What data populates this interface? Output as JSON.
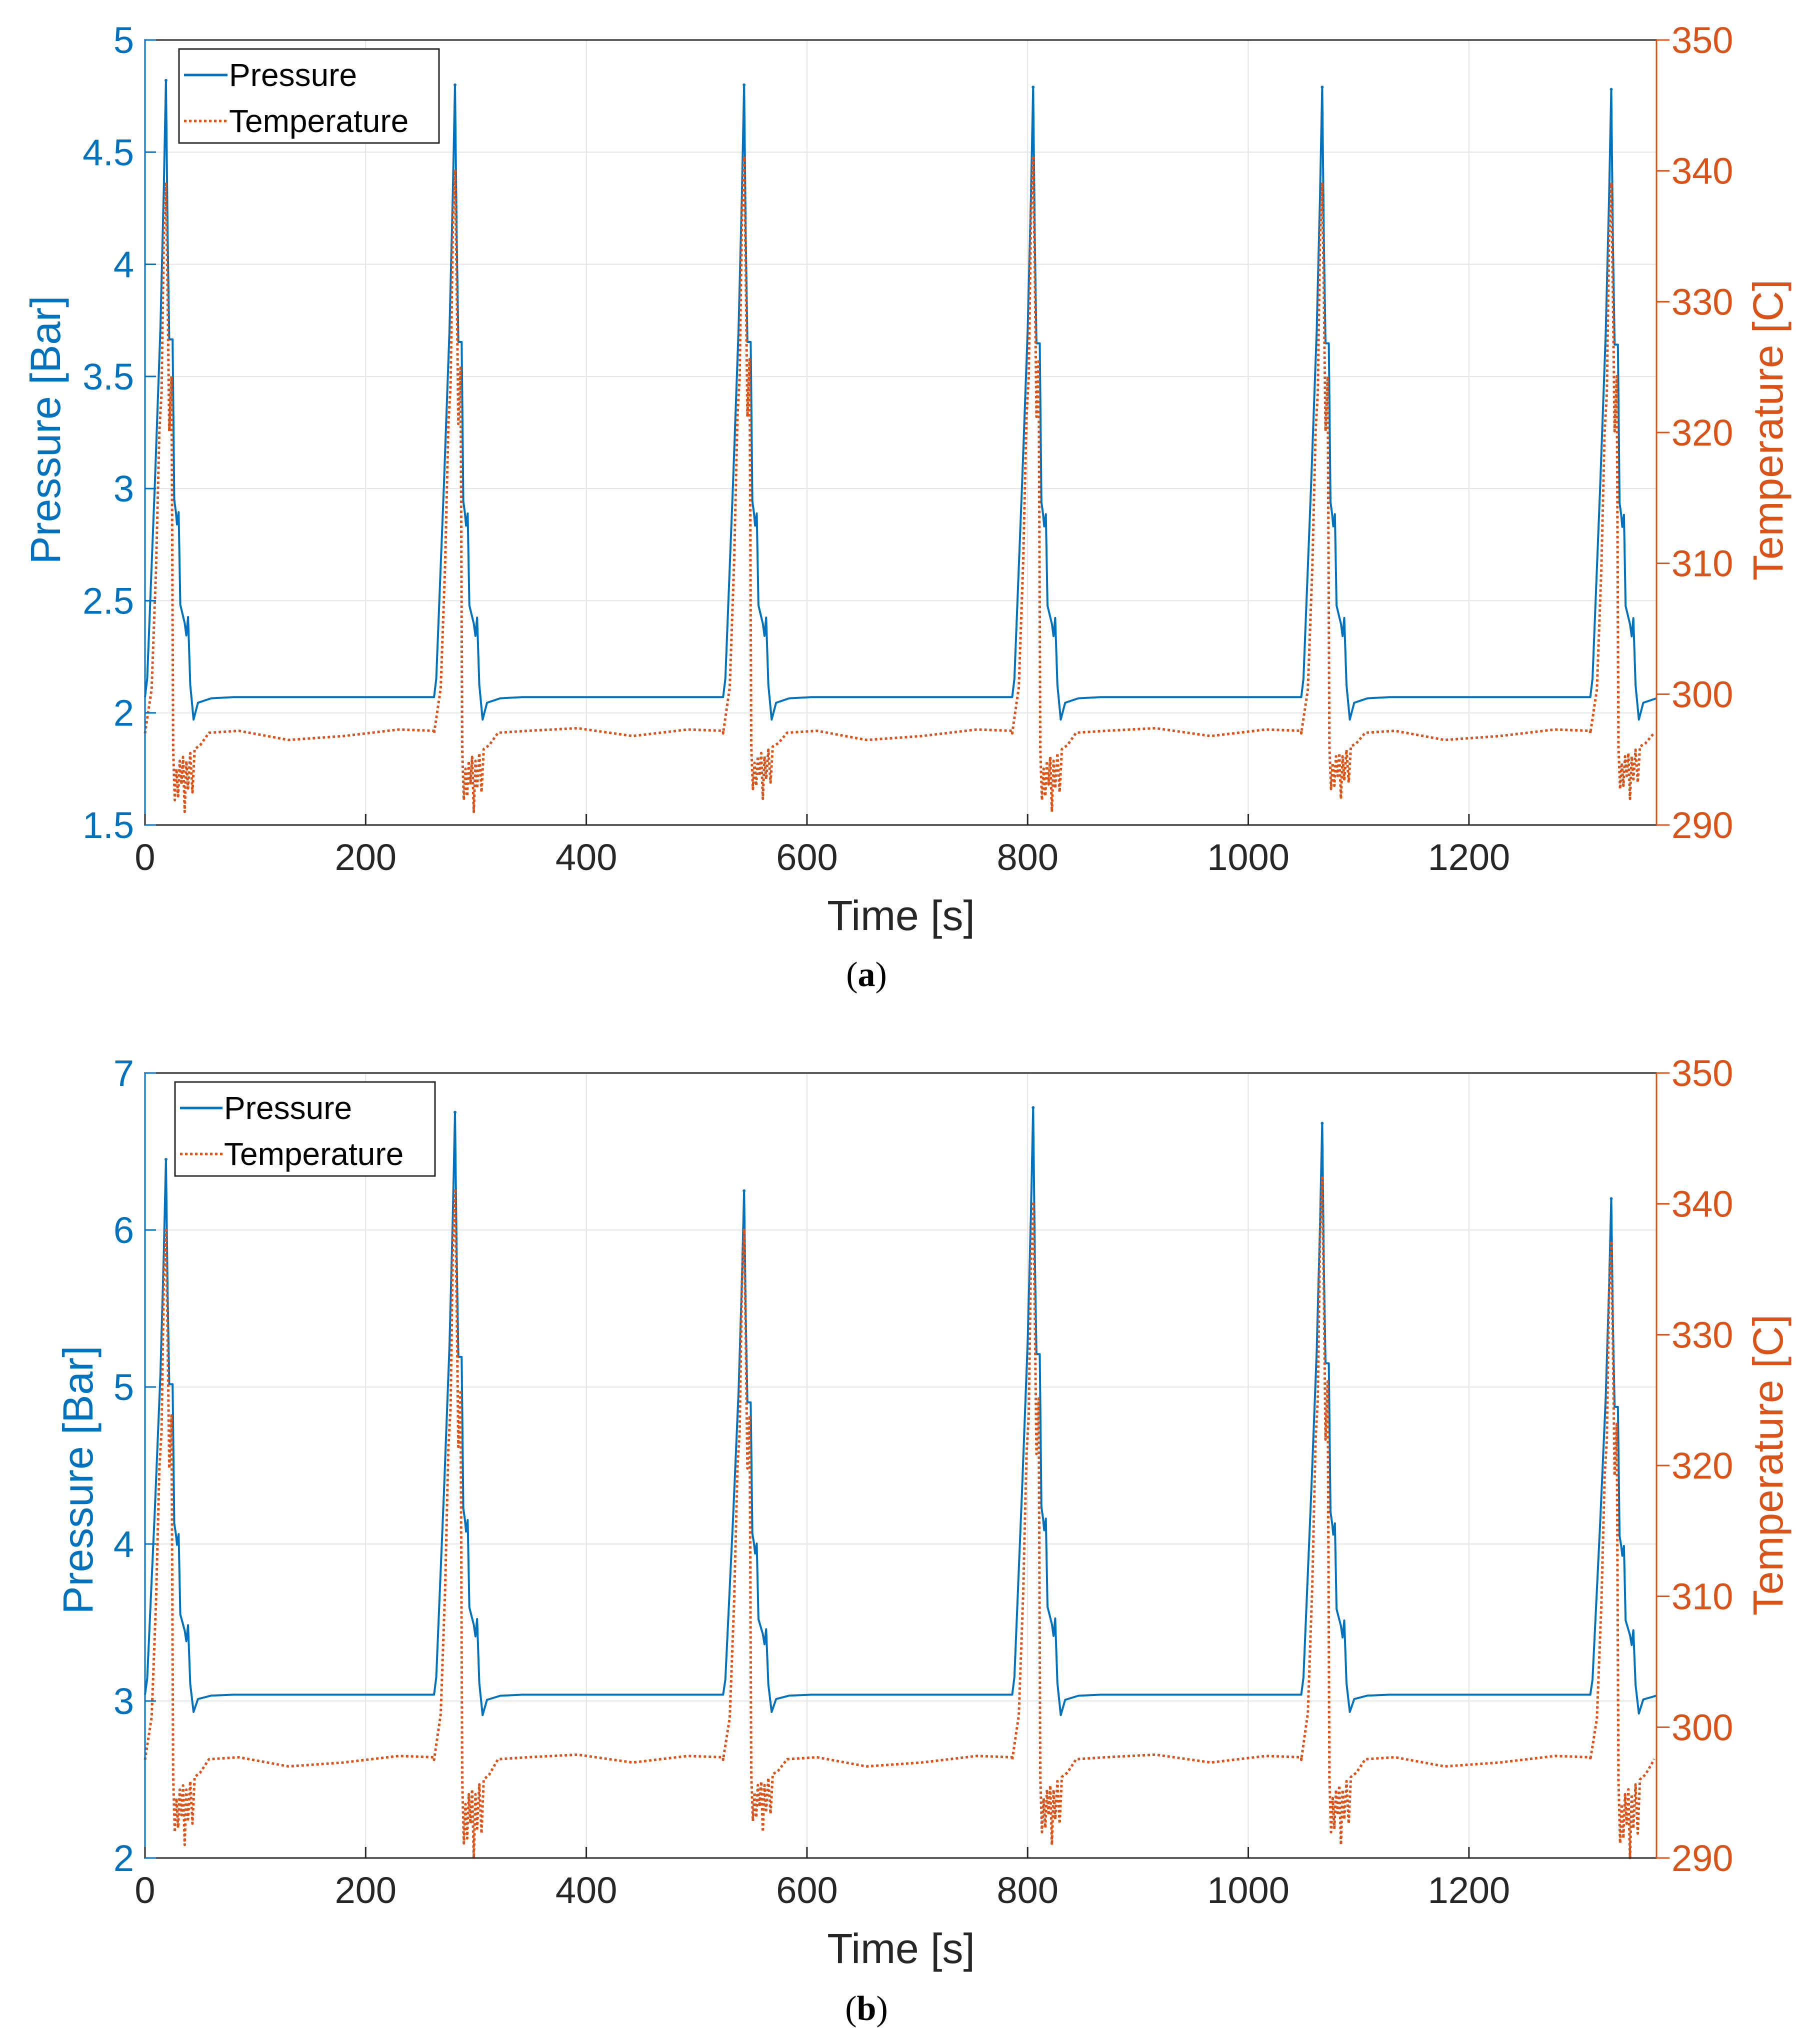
{
  "colors": {
    "pressure": "#0072BD",
    "temperature": "#D95319",
    "grid": "#e3e3e3",
    "axis": "#262626"
  },
  "chart_data": [
    {
      "type": "line",
      "panel_caption": "(a)",
      "caption_parts": {
        "open": "(",
        "letter": "a",
        "close": ")"
      },
      "xlabel": "Time [s]",
      "ylabel_left": "Pressure [Bar]",
      "ylabel_right": "Temperature [C]",
      "xlim": [
        0,
        1370
      ],
      "ylim_left": [
        1.5,
        5
      ],
      "ylim_right": [
        290,
        350
      ],
      "xticks": [
        0,
        200,
        400,
        600,
        800,
        1000,
        1200
      ],
      "yticks_left": [
        1.5,
        2,
        2.5,
        3,
        3.5,
        4,
        4.5,
        5
      ],
      "yticks_right": [
        290,
        300,
        310,
        320,
        330,
        340,
        350
      ],
      "grid": true,
      "legend": {
        "position": "top-left",
        "entries": [
          "Pressure",
          "Temperature"
        ]
      },
      "cycle_period_s": 262,
      "series": [
        {
          "name": "Pressure",
          "axis": "left",
          "style": "solid",
          "baseline": 2.07,
          "cycle_peaks": [
            4.82,
            4.8,
            4.8,
            4.79,
            4.79,
            4.78
          ],
          "cycle_minima": [
            1.97,
            1.97,
            1.97,
            1.97,
            1.97,
            1.97
          ]
        },
        {
          "name": "Temperature",
          "axis": "right",
          "style": "dotted",
          "baseline": 297,
          "cycle_peaks": [
            339,
            340,
            341,
            341,
            339,
            339
          ],
          "cycle_minima": [
            291,
            291,
            292,
            291,
            292,
            292
          ]
        }
      ]
    },
    {
      "type": "line",
      "panel_caption": "(b)",
      "caption_parts": {
        "open": "(",
        "letter": "b",
        "close": ")"
      },
      "xlabel": "Time [s]",
      "ylabel_left": "Pressure [Bar]",
      "ylabel_right": "Temperature [C]",
      "xlim": [
        0,
        1370
      ],
      "ylim_left": [
        2,
        7
      ],
      "ylim_right": [
        290,
        350
      ],
      "xticks": [
        0,
        200,
        400,
        600,
        800,
        1000,
        1200
      ],
      "yticks_left": [
        2,
        3,
        4,
        5,
        6,
        7
      ],
      "yticks_right": [
        290,
        300,
        310,
        320,
        330,
        340,
        350
      ],
      "grid": true,
      "legend": {
        "position": "top-left",
        "entries": [
          "Pressure",
          "Temperature"
        ]
      },
      "cycle_period_s": 262,
      "series": [
        {
          "name": "Pressure",
          "axis": "left",
          "style": "solid",
          "baseline": 3.04,
          "cycle_peaks": [
            6.45,
            6.75,
            6.25,
            6.78,
            6.68,
            6.2
          ],
          "cycle_minima": [
            2.93,
            2.91,
            2.93,
            2.91,
            2.93,
            2.92
          ]
        },
        {
          "name": "Temperature",
          "axis": "right",
          "style": "dotted",
          "baseline": 297.5,
          "cycle_peaks": [
            338,
            341,
            338,
            340,
            342,
            337
          ],
          "cycle_minima": [
            291,
            290,
            292,
            291,
            291,
            290
          ]
        }
      ]
    }
  ]
}
